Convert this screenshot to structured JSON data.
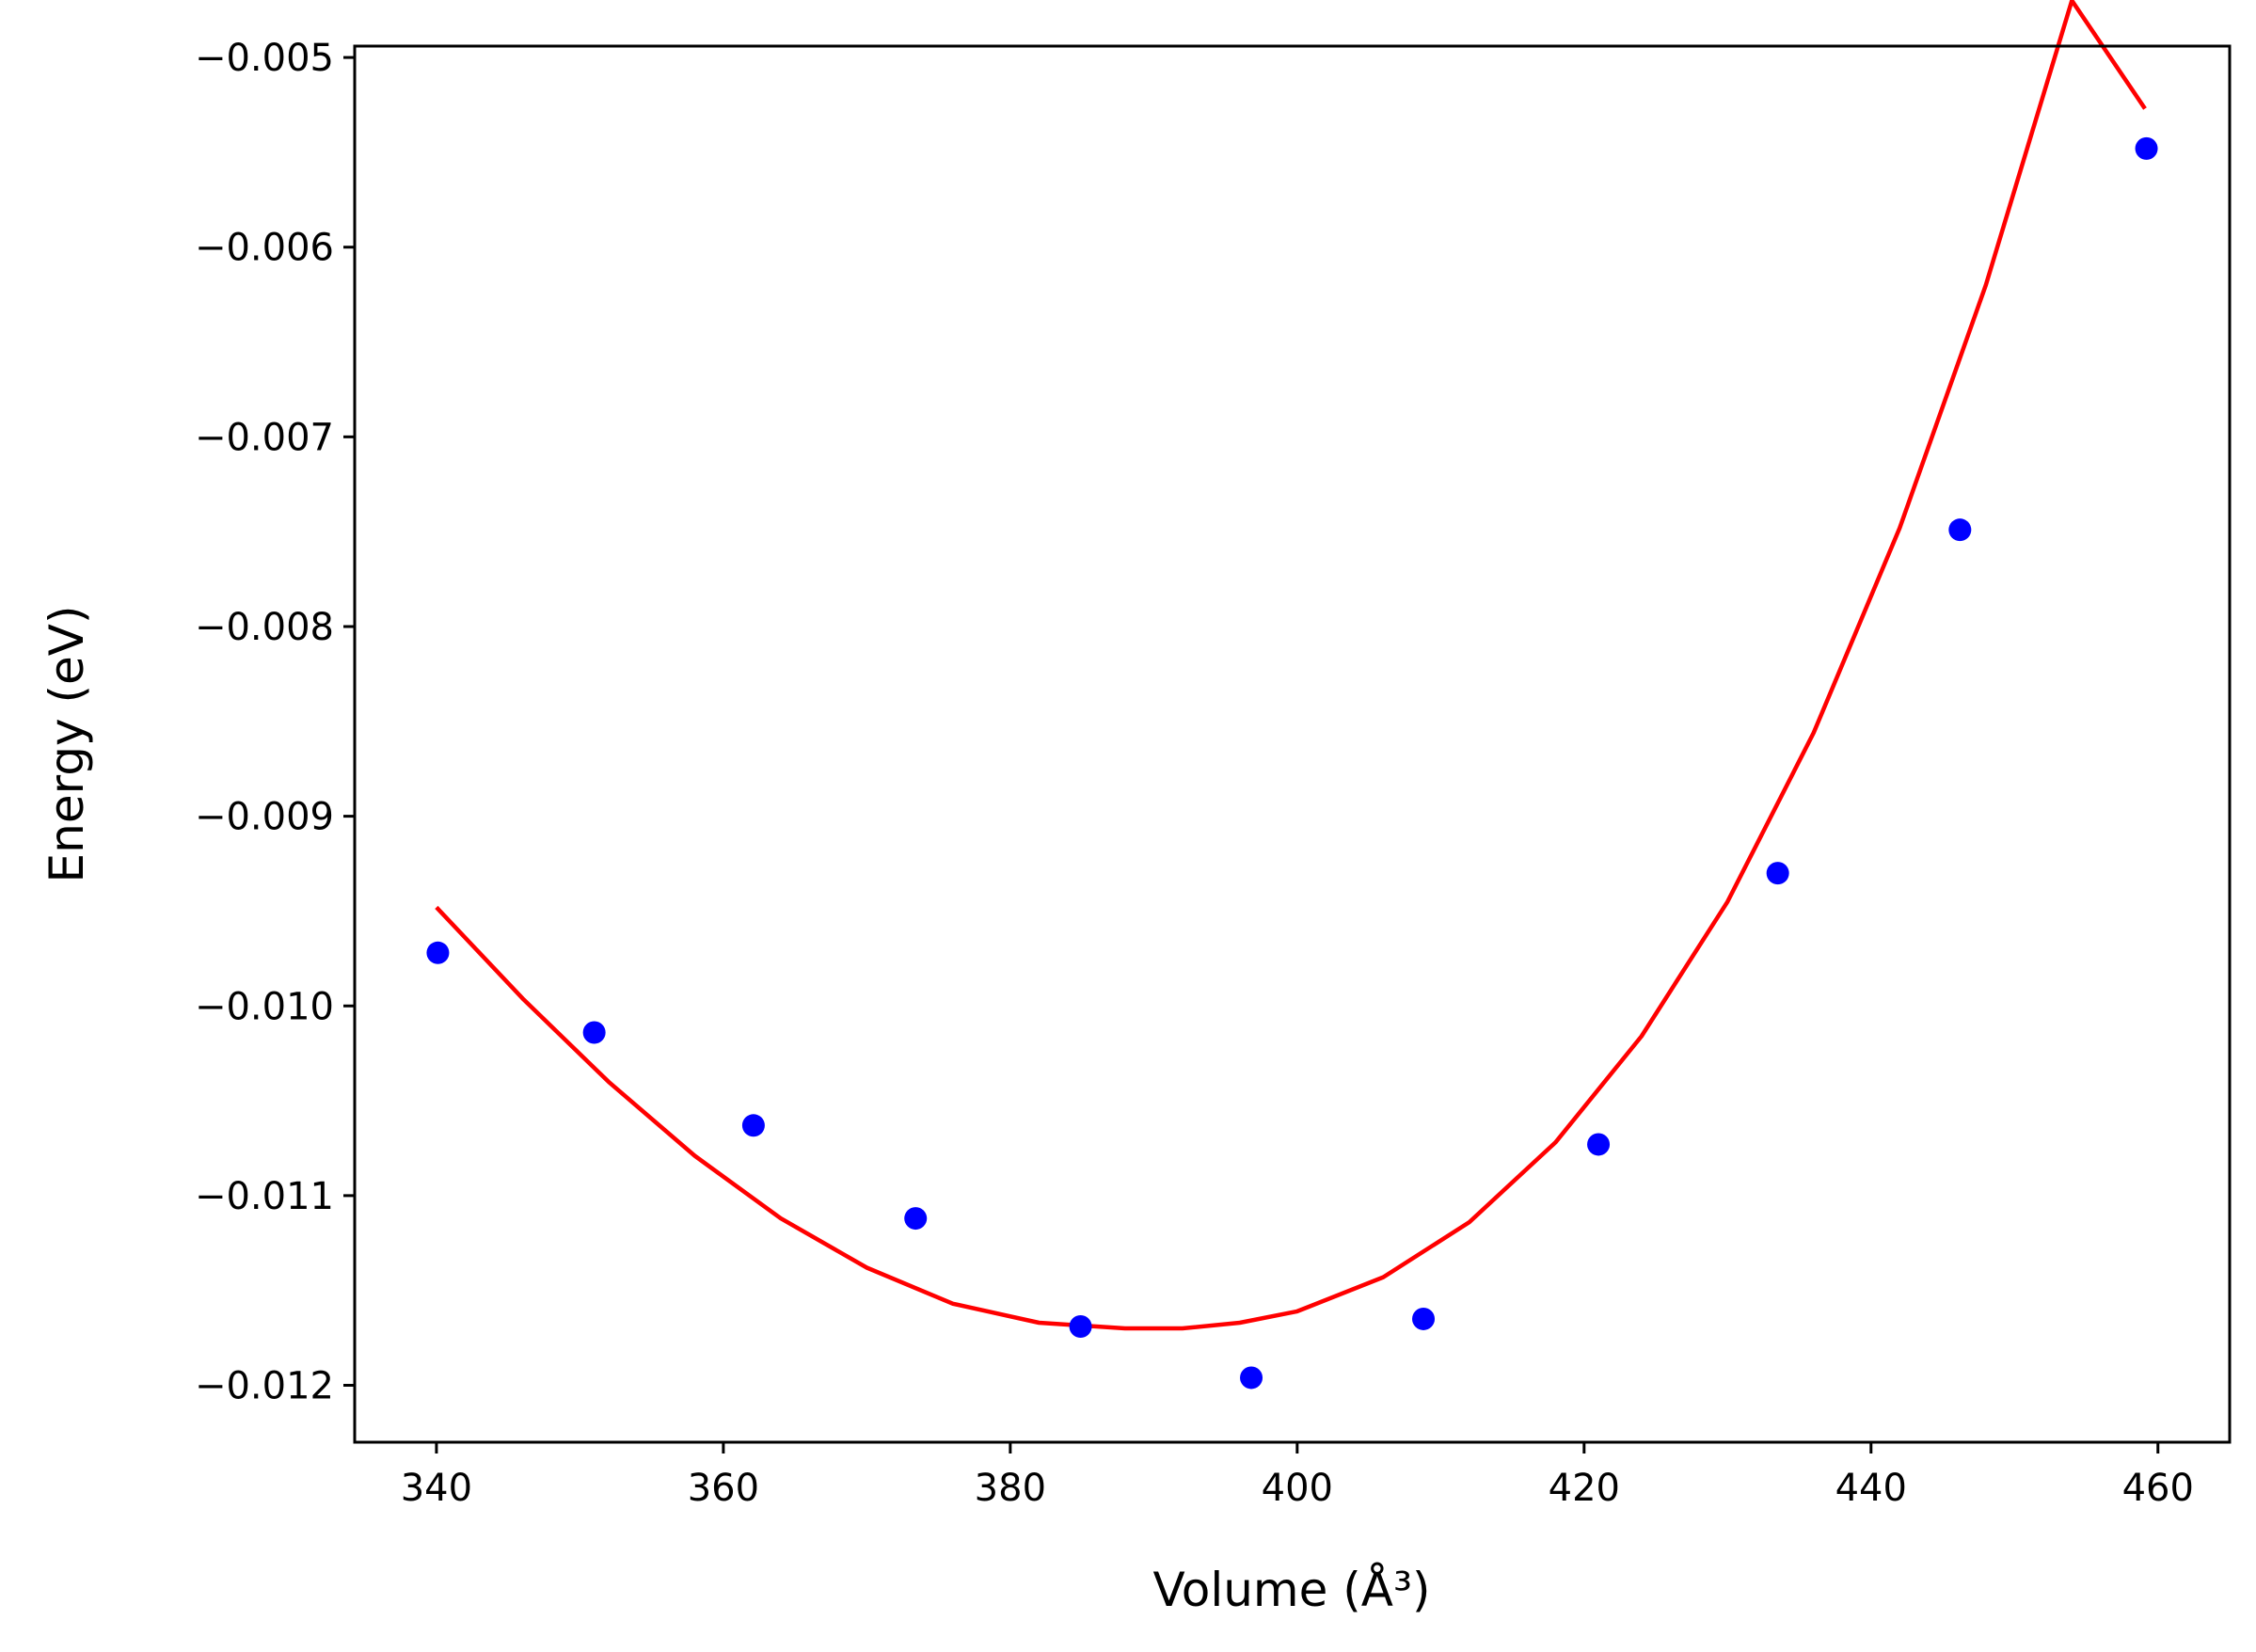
{
  "chart_data": {
    "type": "scatter",
    "title": "",
    "xlabel": "Volume (Å³)",
    "ylabel": "Energy (eV)",
    "xlim": [
      334.3,
      465.0
    ],
    "ylim": [
      -0.0123,
      -0.00494
    ],
    "xticks": [
      340,
      360,
      380,
      400,
      420,
      440,
      460
    ],
    "xtick_labels": [
      "340",
      "360",
      "380",
      "400",
      "420",
      "440",
      "460"
    ],
    "yticks": [
      -0.005,
      -0.006,
      -0.007,
      -0.008,
      -0.009,
      -0.01,
      -0.011,
      -0.012
    ],
    "ytick_labels": [
      "−0.005",
      "−0.006",
      "−0.007",
      "−0.008",
      "−0.009",
      "−0.010",
      "−0.011",
      "−0.012"
    ],
    "grid": false,
    "legend": false,
    "series": [
      {
        "kind": "scatter",
        "color": "#0000ff",
        "x": [
          340.1,
          351.0,
          362.1,
          373.4,
          384.9,
          396.8,
          408.8,
          421.0,
          433.5,
          446.2,
          459.2
        ],
        "y": [
          -0.00972,
          -0.01014,
          -0.01063,
          -0.01112,
          -0.01169,
          -0.01196,
          -0.01165,
          -0.01073,
          -0.0093,
          -0.00749,
          -0.00548
        ]
      },
      {
        "kind": "line",
        "color": "#ff0000",
        "x": [
          340,
          346,
          352,
          358,
          364,
          370,
          376,
          382,
          388,
          392,
          396,
          400,
          406,
          412,
          418,
          424,
          430,
          436,
          442,
          448,
          454,
          459.1
        ],
        "y": [
          -0.00948,
          -0.00996,
          -0.0104,
          -0.01079,
          -0.01112,
          -0.01138,
          -0.01157,
          -0.01167,
          -0.0117,
          -0.0117,
          -0.01167,
          -0.01161,
          -0.01143,
          -0.01114,
          -0.01072,
          -0.01016,
          -0.00945,
          -0.00856,
          -0.00748,
          -0.0062,
          -0.0047,
          -0.00527
        ]
      }
    ]
  }
}
